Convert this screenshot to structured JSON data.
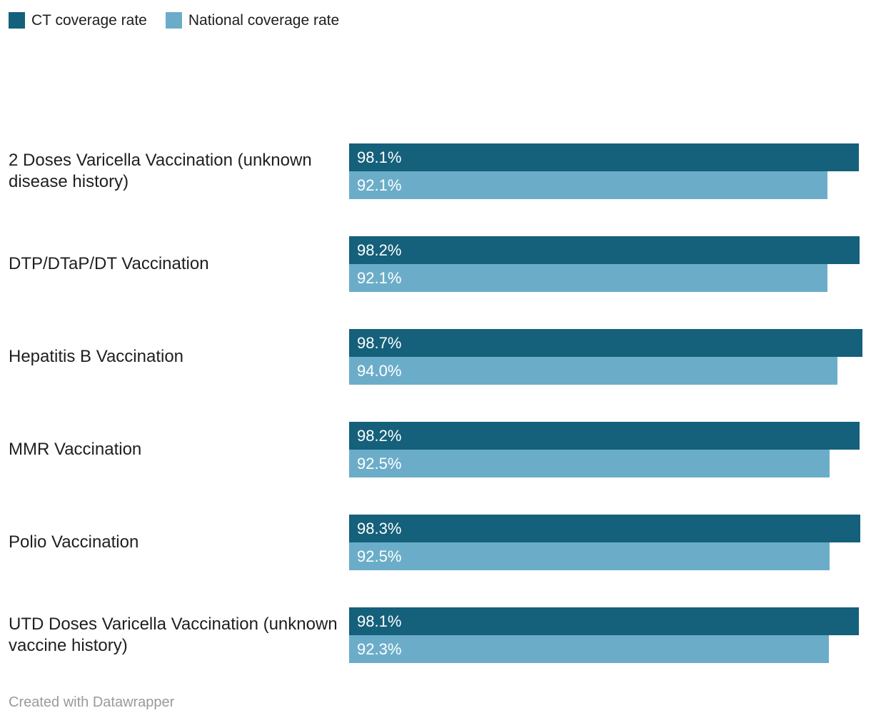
{
  "chart_data": {
    "type": "bar",
    "orientation": "horizontal",
    "title": "",
    "xlabel": "",
    "ylabel": "",
    "xlim": [
      0,
      100
    ],
    "grid": false,
    "legend_position": "top-left",
    "bar_value_labels": "inside-left",
    "value_suffix": "%",
    "categories": [
      "2 Doses Varicella Vaccination (unknown disease history)",
      "DTP/DTaP/DT Vaccination",
      "Hepatitis B Vaccination",
      "MMR Vaccination",
      "Polio Vaccination",
      "UTD Doses Varicella Vaccination (unknown vaccine history)"
    ],
    "series": [
      {
        "name": "CT coverage rate",
        "color": "#15607a",
        "values": [
          98.1,
          98.2,
          98.7,
          98.2,
          98.3,
          98.1
        ]
      },
      {
        "name": "National coverage rate",
        "color": "#6badc9",
        "values": [
          92.1,
          92.1,
          94.0,
          92.5,
          92.5,
          92.3
        ]
      }
    ]
  },
  "footer": {
    "credit": "Created with Datawrapper"
  }
}
